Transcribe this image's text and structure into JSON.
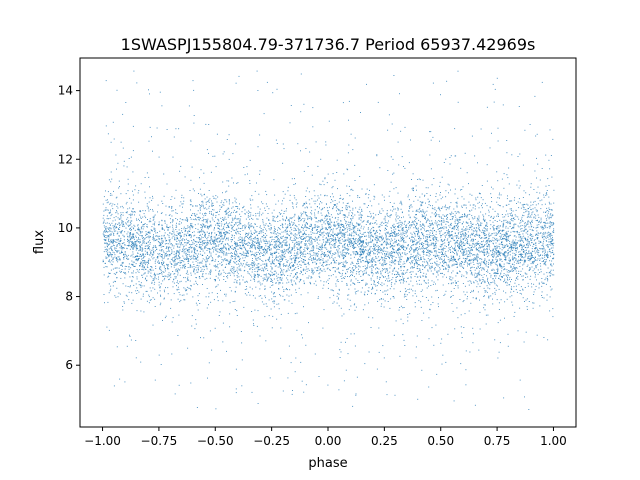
{
  "chart_data": {
    "type": "scatter",
    "title": "1SWASPJ155804.79-371736.7 Period 65937.42969s",
    "xlabel": "phase",
    "ylabel": "flux",
    "xlim": [
      -1.1,
      1.1
    ],
    "ylim": [
      4.2,
      14.95
    ],
    "xticks": [
      -1.0,
      -0.75,
      -0.5,
      -0.25,
      0.0,
      0.25,
      0.5,
      0.75,
      1.0
    ],
    "xtick_labels": [
      "−1.00",
      "−0.75",
      "−0.50",
      "−0.25",
      "0.00",
      "0.25",
      "0.50",
      "0.75",
      "1.00"
    ],
    "yticks": [
      6,
      8,
      10,
      12,
      14
    ],
    "ytick_labels": [
      "6",
      "8",
      "10",
      "12",
      "14"
    ],
    "grid": false,
    "series": [
      {
        "color": "#1f77b4",
        "x_range": [
          -1.0,
          1.0
        ],
        "y_center": 9.5,
        "y_spread_core": [
          8.2,
          10.8
        ],
        "y_extent": [
          4.7,
          14.6
        ],
        "phase_period": 1.0,
        "modulation_amplitude": 0.15
      }
    ]
  }
}
